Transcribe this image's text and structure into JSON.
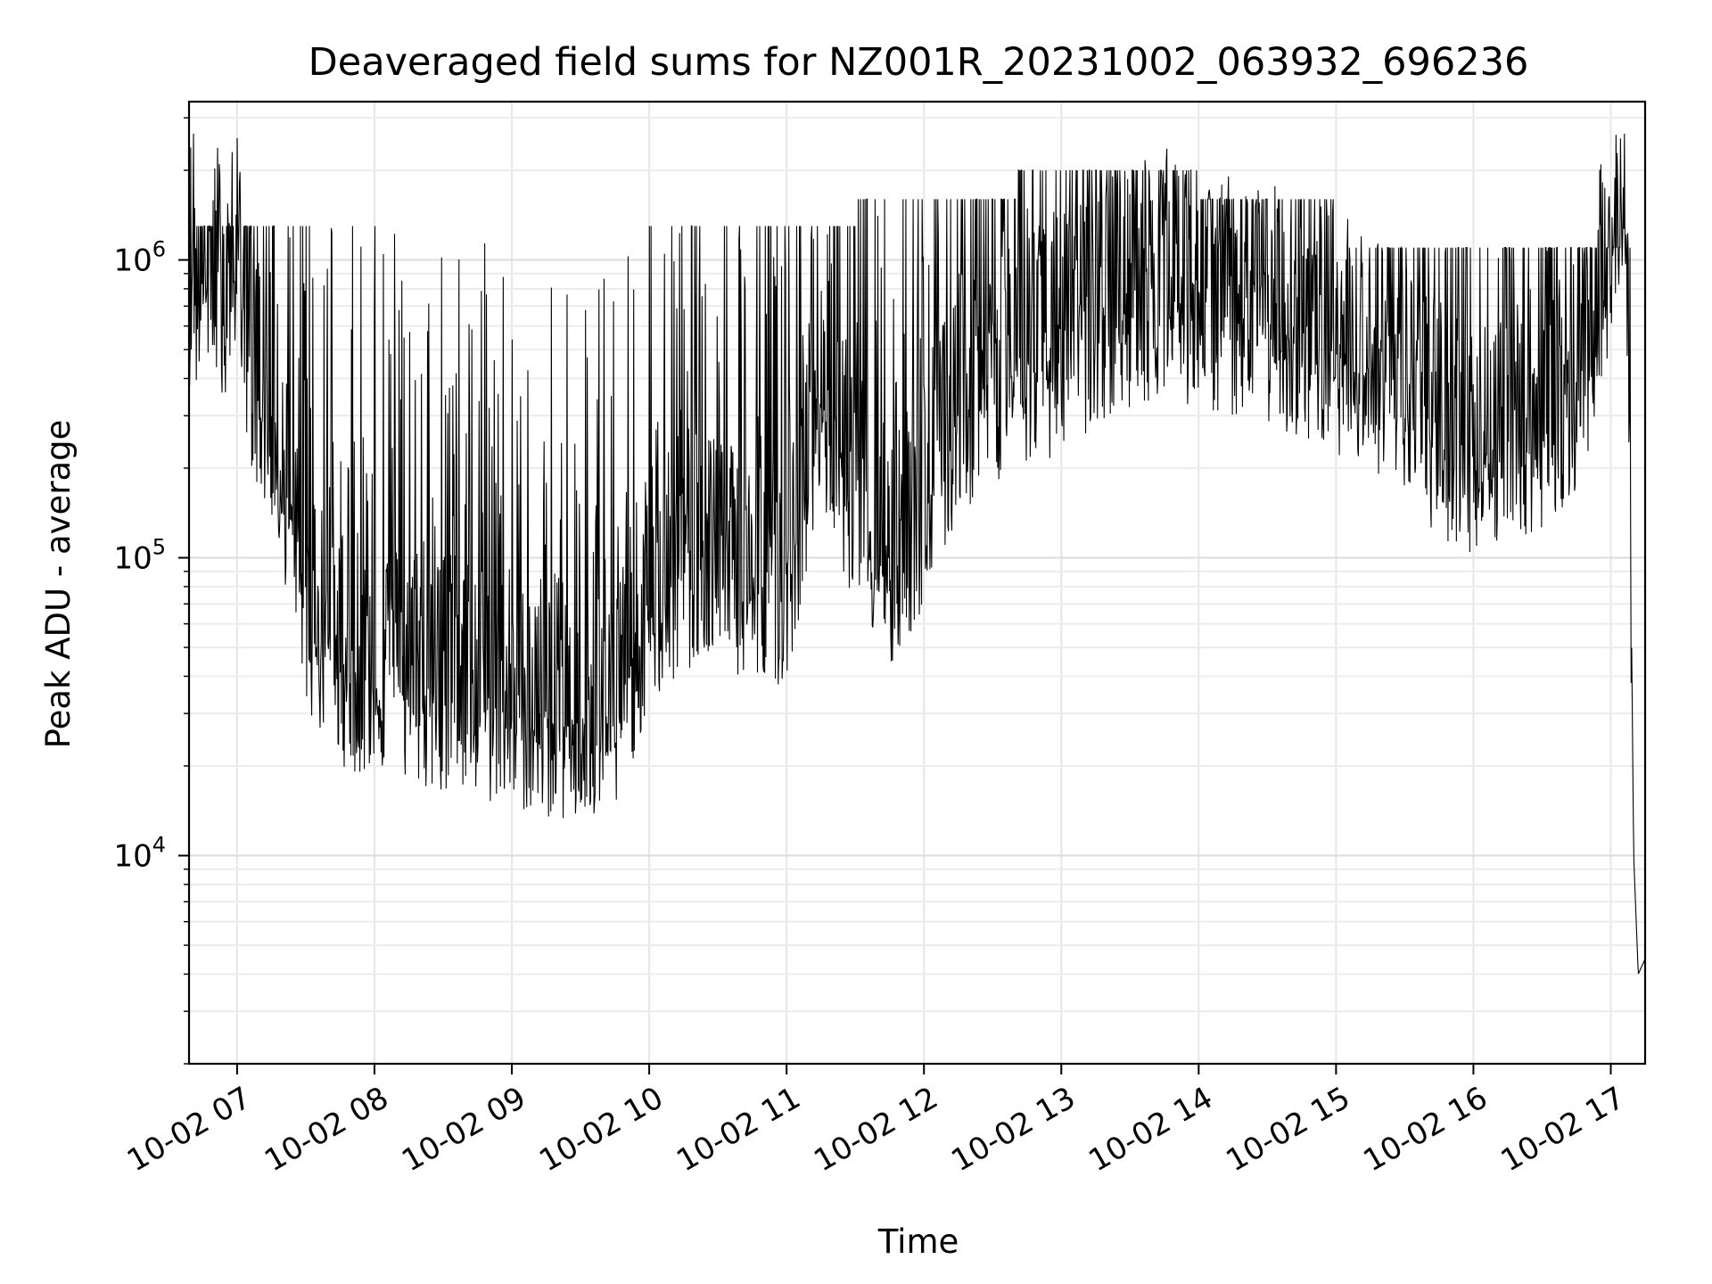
{
  "chart_data": {
    "type": "line",
    "title": "Deaveraged field sums for NZ001R_20231002_063932_696236",
    "xlabel": "Time",
    "ylabel": "Peak ADU - average",
    "yscale": "log",
    "ylim": [
      2000,
      3400000
    ],
    "xlim": [
      "2023-10-02 06:39",
      "2023-10-02 17:15"
    ],
    "grid": true,
    "x_ticks": [
      "10-02 07",
      "10-02 08",
      "10-02 09",
      "10-02 10",
      "10-02 11",
      "10-02 12",
      "10-02 13",
      "10-02 14",
      "10-02 15",
      "10-02 16",
      "10-02 17"
    ],
    "y_ticks": [
      {
        "value": 10000,
        "base": "10",
        "exp": "4"
      },
      {
        "value": 100000,
        "base": "10",
        "exp": "5"
      },
      {
        "value": 1000000,
        "base": "10",
        "exp": "6"
      }
    ],
    "line_color": "#000000",
    "series": [
      {
        "x": [
          "06:39",
          "06:41",
          "06:43",
          "06:45",
          "06:47",
          "06:50",
          "06:52",
          "06:55",
          "06:58",
          "07:00",
          "07:05",
          "07:10",
          "07:15",
          "07:20",
          "07:25",
          "07:30",
          "07:40",
          "07:50",
          "08:00",
          "08:15",
          "08:30",
          "08:45",
          "09:00",
          "09:15",
          "09:30",
          "09:45",
          "10:00",
          "10:15",
          "10:30",
          "10:45",
          "11:00",
          "11:15",
          "11:30",
          "11:45",
          "12:00",
          "12:15",
          "12:30",
          "12:45",
          "13:00",
          "13:15",
          "13:30",
          "13:45",
          "14:00",
          "14:15",
          "14:30",
          "14:45",
          "15:00",
          "15:15",
          "15:30",
          "15:45",
          "16:00",
          "16:15",
          "16:30",
          "16:45",
          "17:00",
          "17:05",
          "17:08",
          "17:10",
          "17:12",
          "17:15"
        ],
        "values": [
          800000,
          1200000,
          600000,
          1000000,
          700000,
          900000,
          850000,
          750000,
          900000,
          1000000,
          500000,
          350000,
          300000,
          200000,
          120000,
          70000,
          50000,
          42000,
          40000,
          38000,
          36000,
          33000,
          32000,
          30000,
          28000,
          30000,
          70000,
          90000,
          100000,
          80000,
          85000,
          350000,
          150000,
          90000,
          150000,
          300000,
          400000,
          450000,
          500000,
          600000,
          700000,
          800000,
          700000,
          650000,
          600000,
          550000,
          500000,
          450000,
          350000,
          250000,
          230000,
          250000,
          270000,
          300000,
          1000000,
          2000000,
          400000,
          10000,
          4000,
          4500
        ]
      }
    ]
  }
}
